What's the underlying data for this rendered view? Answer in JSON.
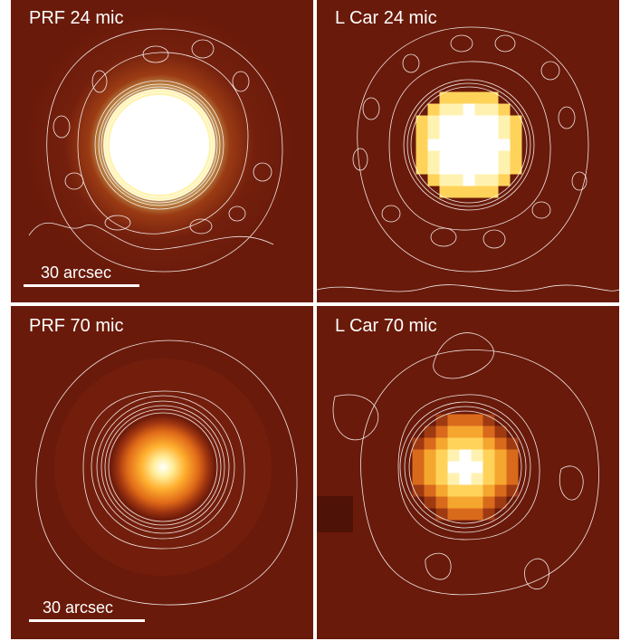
{
  "panels": [
    {
      "id": "prf-24",
      "label": "PRF 24 mic",
      "scale_label": "30 arcsec"
    },
    {
      "id": "lcar-24",
      "label": "L Car 24 mic"
    },
    {
      "id": "prf-70",
      "label": "PRF 70 mic",
      "scale_label": "30 arcsec"
    },
    {
      "id": "lcar-70",
      "label": "L Car 70 mic"
    }
  ],
  "colors": {
    "background": "#6b1a0a",
    "core": "#ffffff",
    "halo": "#ffcc33",
    "contour": "#ffffff"
  }
}
